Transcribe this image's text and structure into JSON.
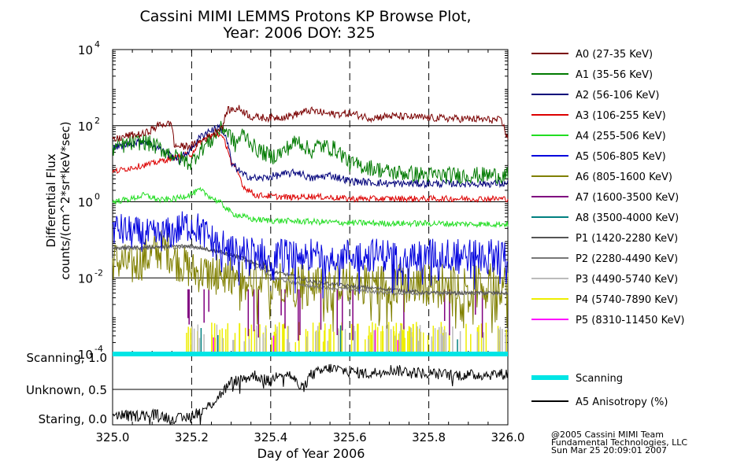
{
  "chart_data": [
    {
      "type": "line",
      "title": "Cassini MIMI LEMMS Protons KP Browse Plot,",
      "subtitle": "Year: 2006 DOY: 325",
      "ylabel": "Differential Flux",
      "ylabel2": "counts/(cm^2*sr*keV*sec)",
      "yscale": "log",
      "ylim": [
        0.0001,
        10000
      ],
      "xlim": [
        325.0,
        326.0
      ],
      "grid": true,
      "legend_position": "right",
      "y_ticks": [
        {
          "base": "10",
          "exp": "4",
          "value": 10000
        },
        {
          "base": "10",
          "exp": "2",
          "value": 100
        },
        {
          "base": "10",
          "exp": "0",
          "value": 1
        },
        {
          "base": "10",
          "exp": "-2",
          "value": 0.01
        },
        {
          "base": "10",
          "exp": "-4",
          "value": 0.0001
        }
      ],
      "series": [
        {
          "name": "A0 (27-35 KeV)",
          "color": "#7a0000",
          "values": [
            [
              325.0,
              40
            ],
            [
              325.04,
              55
            ],
            [
              325.08,
              60
            ],
            [
              325.11,
              90
            ],
            [
              325.12,
              110
            ],
            [
              325.15,
              110
            ],
            [
              325.155,
              30
            ],
            [
              325.18,
              28
            ],
            [
              325.21,
              32
            ],
            [
              325.25,
              55
            ],
            [
              325.28,
              100
            ],
            [
              325.29,
              250
            ],
            [
              325.32,
              280
            ],
            [
              325.35,
              170
            ],
            [
              325.4,
              160
            ],
            [
              325.45,
              180
            ],
            [
              325.5,
              250
            ],
            [
              325.55,
              200
            ],
            [
              325.6,
              210
            ],
            [
              325.65,
              160
            ],
            [
              325.7,
              180
            ],
            [
              325.8,
              160
            ],
            [
              325.9,
              150
            ],
            [
              325.98,
              140
            ],
            [
              326.0,
              40
            ]
          ]
        },
        {
          "name": "A1 (35-56 KeV)",
          "color": "#007a00",
          "values": [
            [
              325.0,
              25
            ],
            [
              325.05,
              35
            ],
            [
              325.08,
              38
            ],
            [
              325.12,
              25
            ],
            [
              325.16,
              15
            ],
            [
              325.2,
              10
            ],
            [
              325.25,
              40
            ],
            [
              325.28,
              90
            ],
            [
              325.31,
              30
            ],
            [
              325.33,
              60
            ],
            [
              325.36,
              25
            ],
            [
              325.4,
              15
            ],
            [
              325.43,
              20
            ],
            [
              325.47,
              40
            ],
            [
              325.5,
              20
            ],
            [
              325.52,
              30
            ],
            [
              325.56,
              25
            ],
            [
              325.6,
              10
            ],
            [
              325.7,
              6
            ],
            [
              325.8,
              5
            ],
            [
              325.9,
              5
            ],
            [
              326.0,
              5
            ]
          ]
        },
        {
          "name": "A2 (56-106 KeV)",
          "color": "#00007a",
          "values": [
            [
              325.0,
              25
            ],
            [
              325.05,
              35
            ],
            [
              325.08,
              40
            ],
            [
              325.13,
              20
            ],
            [
              325.17,
              12
            ],
            [
              325.2,
              25
            ],
            [
              325.24,
              70
            ],
            [
              325.27,
              90
            ],
            [
              325.3,
              10
            ],
            [
              325.33,
              5
            ],
            [
              325.37,
              4
            ],
            [
              325.42,
              5
            ],
            [
              325.47,
              6
            ],
            [
              325.5,
              4
            ],
            [
              325.55,
              5
            ],
            [
              325.6,
              3.5
            ],
            [
              325.7,
              3
            ],
            [
              325.8,
              3
            ],
            [
              325.9,
              3
            ],
            [
              326.0,
              3
            ]
          ]
        },
        {
          "name": "A3 (106-255 KeV)",
          "color": "#dd0000",
          "values": [
            [
              325.0,
              6
            ],
            [
              325.05,
              8
            ],
            [
              325.1,
              10
            ],
            [
              325.15,
              14
            ],
            [
              325.2,
              18
            ],
            [
              325.24,
              50
            ],
            [
              325.27,
              60
            ],
            [
              325.3,
              10
            ],
            [
              325.33,
              2.5
            ],
            [
              325.36,
              1.5
            ],
            [
              325.4,
              1.4
            ],
            [
              325.45,
              1.3
            ],
            [
              325.5,
              1.4
            ],
            [
              325.55,
              1.3
            ],
            [
              325.6,
              1.2
            ],
            [
              325.7,
              1.2
            ],
            [
              325.8,
              1.2
            ],
            [
              325.9,
              1.2
            ],
            [
              326.0,
              1.2
            ]
          ]
        },
        {
          "name": "A4 (255-506 KeV)",
          "color": "#22dd22",
          "values": [
            [
              325.0,
              1.0
            ],
            [
              325.05,
              1.2
            ],
            [
              325.08,
              1.5
            ],
            [
              325.12,
              1.1
            ],
            [
              325.16,
              1.2
            ],
            [
              325.2,
              1.6
            ],
            [
              325.22,
              2.0
            ],
            [
              325.25,
              1.3
            ],
            [
              325.28,
              0.8
            ],
            [
              325.3,
              0.5
            ],
            [
              325.35,
              0.35
            ],
            [
              325.4,
              0.32
            ],
            [
              325.5,
              0.3
            ],
            [
              325.6,
              0.28
            ],
            [
              325.7,
              0.27
            ],
            [
              325.8,
              0.27
            ],
            [
              325.9,
              0.26
            ],
            [
              326.0,
              0.26
            ]
          ]
        },
        {
          "name": "A5 (506-805 KeV)",
          "color": "#0000dd",
          "values": [
            [
              325.0,
              0.2
            ],
            [
              325.05,
              0.15
            ],
            [
              325.1,
              0.12
            ],
            [
              325.15,
              0.15
            ],
            [
              325.18,
              0.22
            ],
            [
              325.2,
              0.25
            ],
            [
              325.23,
              0.15
            ],
            [
              325.26,
              0.08
            ],
            [
              325.3,
              0.05
            ],
            [
              325.4,
              0.04
            ],
            [
              325.5,
              0.04
            ],
            [
              325.6,
              0.04
            ],
            [
              325.7,
              0.04
            ],
            [
              325.8,
              0.04
            ],
            [
              325.9,
              0.04
            ],
            [
              326.0,
              0.04
            ]
          ]
        },
        {
          "name": "A6 (805-1600 KeV)",
          "color": "#808000",
          "values": [
            [
              325.0,
              0.03
            ],
            [
              325.05,
              0.02
            ],
            [
              325.1,
              0.04
            ],
            [
              325.13,
              0.06
            ],
            [
              325.16,
              0.03
            ],
            [
              325.2,
              0.015
            ],
            [
              325.3,
              0.01
            ],
            [
              325.4,
              0.008
            ],
            [
              325.5,
              0.008
            ],
            [
              325.6,
              0.008
            ],
            [
              325.7,
              0.007
            ],
            [
              325.8,
              0.007
            ],
            [
              325.9,
              0.007
            ],
            [
              326.0,
              0.007
            ]
          ]
        },
        {
          "name": "A7 (1600-3500 KeV)",
          "color": "#800080",
          "values": [
            [
              325.0,
              0.005
            ],
            [
              325.2,
              0.005
            ],
            [
              325.4,
              0.004
            ],
            [
              325.6,
              0.004
            ],
            [
              325.8,
              0.004
            ],
            [
              326.0,
              0.004
            ]
          ]
        },
        {
          "name": "A8 (3500-4000 KeV)",
          "color": "#008080",
          "values": [
            [
              325.0,
              0.004
            ],
            [
              325.5,
              0.004
            ],
            [
              326.0,
              0.004
            ]
          ]
        },
        {
          "name": "P1 (1420-2280 KeV)",
          "color": "#555555",
          "values": [
            [
              325.0,
              0.06
            ],
            [
              325.1,
              0.065
            ],
            [
              325.2,
              0.07
            ],
            [
              325.3,
              0.04
            ],
            [
              325.4,
              0.015
            ],
            [
              325.5,
              0.008
            ],
            [
              325.6,
              0.006
            ],
            [
              325.7,
              0.005
            ],
            [
              325.8,
              0.004
            ],
            [
              325.9,
              0.004
            ],
            [
              326.0,
              0.004
            ]
          ]
        },
        {
          "name": "P2 (2280-4490 KeV)",
          "color": "#777777",
          "values": [
            [
              325.0,
              0.06
            ],
            [
              325.1,
              0.062
            ],
            [
              325.2,
              0.065
            ],
            [
              325.3,
              0.04
            ],
            [
              325.4,
              0.01
            ],
            [
              325.5,
              0.006
            ],
            [
              325.6,
              0.005
            ],
            [
              325.7,
              0.004
            ],
            [
              325.8,
              0.004
            ],
            [
              325.9,
              0.004
            ],
            [
              326.0,
              0.004
            ]
          ]
        },
        {
          "name": "P3 (4490-5740 KeV)",
          "color": "#bbbbbb",
          "values": [
            [
              325.0,
              0.0003
            ],
            [
              326.0,
              0.0003
            ]
          ]
        },
        {
          "name": "P4 (5740-7890 KeV)",
          "color": "#eeee00",
          "values": [
            [
              325.0,
              0.0002
            ],
            [
              326.0,
              0.0002
            ]
          ]
        },
        {
          "name": "P5 (8310-11450 KeV)",
          "color": "#ff00ff",
          "values": [
            [
              325.0,
              0.0001
            ],
            [
              326.0,
              0.0001
            ]
          ]
        }
      ]
    },
    {
      "type": "line",
      "xlabel": "Day of Year 2006",
      "xlim": [
        325.0,
        326.0
      ],
      "ylim": [
        0.0,
        1.0
      ],
      "x_tick_labels": [
        "325.0",
        "325.2",
        "325.4",
        "325.6",
        "325.8",
        "326.0"
      ],
      "y_tick_labels": [
        {
          "label": "Staring, 0.0",
          "value": 0.0
        },
        {
          "label": "Unknown, 0.5",
          "value": 0.5
        },
        {
          "label": "Scanning, 1.0",
          "value": 1.0
        }
      ],
      "series": [
        {
          "name": "Scanning",
          "color": "#00e5e5",
          "values": [
            [
              325.0,
              1.0
            ],
            [
              326.0,
              1.0
            ]
          ]
        },
        {
          "name": "A5 Anisotropy (%)",
          "color": "#000000",
          "values": [
            [
              325.0,
              0.15
            ],
            [
              325.05,
              0.12
            ],
            [
              325.1,
              0.15
            ],
            [
              325.15,
              0.1
            ],
            [
              325.18,
              0.08
            ],
            [
              325.2,
              0.15
            ],
            [
              325.23,
              0.2
            ],
            [
              325.26,
              0.35
            ],
            [
              325.3,
              0.6
            ],
            [
              325.33,
              0.65
            ],
            [
              325.36,
              0.7
            ],
            [
              325.4,
              0.6
            ],
            [
              325.42,
              0.75
            ],
            [
              325.45,
              0.7
            ],
            [
              325.48,
              0.5
            ],
            [
              325.5,
              0.7
            ],
            [
              325.55,
              0.8
            ],
            [
              325.6,
              0.75
            ],
            [
              325.65,
              0.72
            ],
            [
              325.7,
              0.78
            ],
            [
              325.8,
              0.72
            ],
            [
              325.9,
              0.7
            ],
            [
              326.0,
              0.72
            ]
          ]
        }
      ]
    }
  ],
  "footer": {
    "line1": "@2005 Cassini MIMI Team",
    "line2": "Fundamental Technologies, LLC",
    "line3": "Sun Mar 25 20:09:01 2007"
  }
}
